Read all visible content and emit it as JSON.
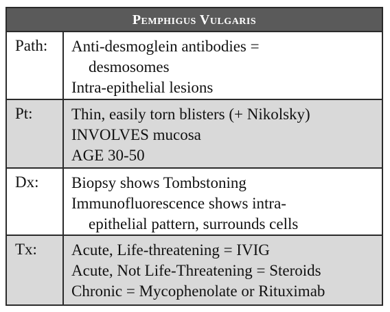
{
  "title": "Pemphigus Vulgaris",
  "rows": [
    {
      "label": "Path:",
      "lines": [
        {
          "text": "Anti-desmoglein antibodies =",
          "indent": false
        },
        {
          "text": "desmosomes",
          "indent": true
        },
        {
          "text": "Intra-epithelial lesions",
          "indent": false
        }
      ]
    },
    {
      "label": "Pt:",
      "lines": [
        {
          "text": "Thin, easily torn blisters (+ Nikolsky)",
          "indent": false
        },
        {
          "text": "INVOLVES mucosa",
          "indent": false
        },
        {
          "text": "AGE 30-50",
          "indent": false
        }
      ]
    },
    {
      "label": "Dx:",
      "lines": [
        {
          "text": "Biopsy shows Tombstoning",
          "indent": false
        },
        {
          "text": "Immunofluorescence shows intra-",
          "indent": false
        },
        {
          "text": "epithelial pattern, surrounds cells",
          "indent": true
        }
      ]
    },
    {
      "label": "Tx:",
      "lines": [
        {
          "text": "Acute, Life-threatening = IVIG",
          "indent": false
        },
        {
          "text": "Acute, Not Life-Threatening = Steroids",
          "indent": false
        },
        {
          "text": "Chronic = Mycophenolate or Rituximab",
          "indent": false
        }
      ]
    }
  ]
}
